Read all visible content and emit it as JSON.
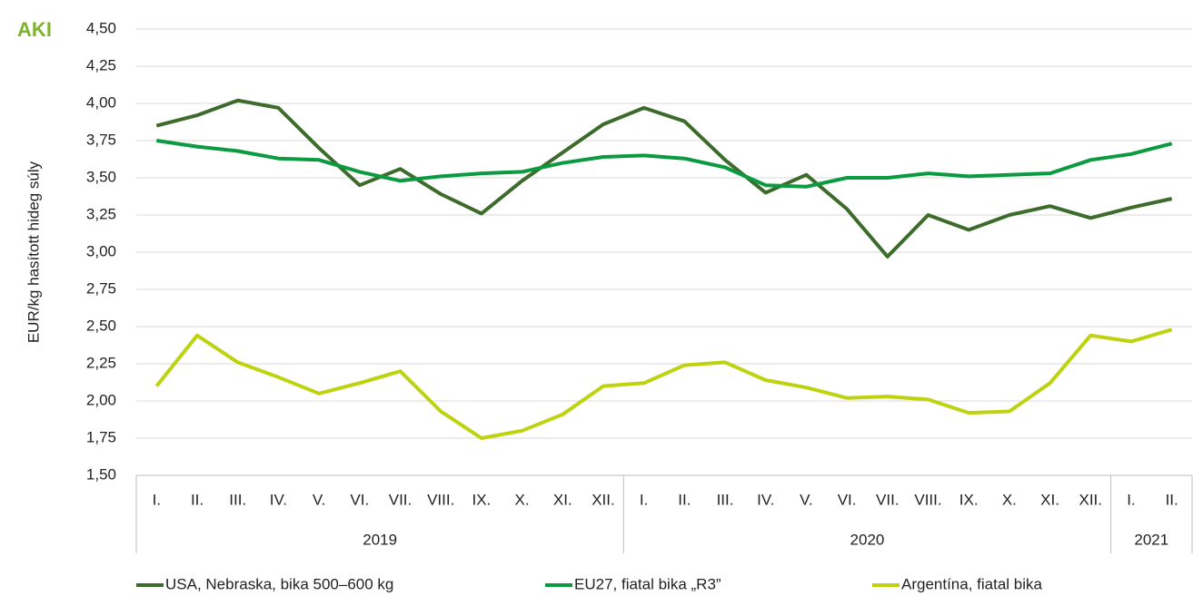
{
  "logo": "AKI",
  "chart_data": {
    "type": "line",
    "y_label": "EUR/kg hasított hideg súly",
    "groups": [
      {
        "name": "2019",
        "categories": [
          "I.",
          "II.",
          "III.",
          "IV.",
          "V.",
          "VI.",
          "VII.",
          "VIII.",
          "IX.",
          "X.",
          "XI.",
          "XII."
        ]
      },
      {
        "name": "2020",
        "categories": [
          "I.",
          "II.",
          "III.",
          "IV.",
          "V.",
          "VI.",
          "VII.",
          "VIII.",
          "IX.",
          "X.",
          "XI.",
          "XII."
        ]
      },
      {
        "name": "2021",
        "categories": [
          "I.",
          "II."
        ]
      }
    ],
    "series": [
      {
        "name": "USA, Nebraska, bika 500–600 kg",
        "color": "#3d6b2c",
        "values": [
          3.85,
          3.92,
          4.02,
          3.97,
          3.7,
          3.45,
          3.56,
          3.39,
          3.26,
          3.48,
          3.67,
          3.86,
          3.97,
          3.88,
          3.62,
          3.4,
          3.52,
          3.29,
          2.97,
          3.25,
          3.15,
          3.25,
          3.31,
          3.23,
          3.3,
          3.36
        ]
      },
      {
        "name": "EU27, fiatal bika „R3”",
        "color": "#0b9a3f",
        "values": [
          3.75,
          3.71,
          3.68,
          3.63,
          3.62,
          3.54,
          3.48,
          3.51,
          3.53,
          3.54,
          3.6,
          3.64,
          3.65,
          3.63,
          3.57,
          3.45,
          3.44,
          3.5,
          3.5,
          3.53,
          3.51,
          3.52,
          3.53,
          3.62,
          3.66,
          3.73
        ]
      },
      {
        "name": "Argentína, fiatal bika",
        "color": "#bdd30f",
        "values": [
          2.1,
          2.44,
          2.26,
          2.16,
          2.05,
          2.12,
          2.2,
          1.93,
          1.75,
          1.8,
          1.91,
          2.1,
          2.12,
          2.24,
          2.26,
          2.14,
          2.09,
          2.02,
          2.03,
          2.01,
          1.92,
          1.93,
          2.12,
          2.44,
          2.4,
          2.48
        ]
      }
    ],
    "ylim": [
      1.5,
      4.5
    ],
    "yticks": [
      {
        "value": 1.5,
        "label": "1,50"
      },
      {
        "value": 1.75,
        "label": "1,75"
      },
      {
        "value": 2,
        "label": "2,00"
      },
      {
        "value": 2.25,
        "label": "2,25"
      },
      {
        "value": 2.5,
        "label": "2,50"
      },
      {
        "value": 2.75,
        "label": "2,75"
      },
      {
        "value": 3,
        "label": "3,00"
      },
      {
        "value": 3.25,
        "label": "3,25"
      },
      {
        "value": 3.5,
        "label": "3,50"
      },
      {
        "value": 3.75,
        "label": "3,75"
      },
      {
        "value": 4,
        "label": "4,00"
      },
      {
        "value": 4.25,
        "label": "4,25"
      },
      {
        "value": 4.5,
        "label": "4,50"
      }
    ],
    "grid": true,
    "legend": "bottom"
  }
}
